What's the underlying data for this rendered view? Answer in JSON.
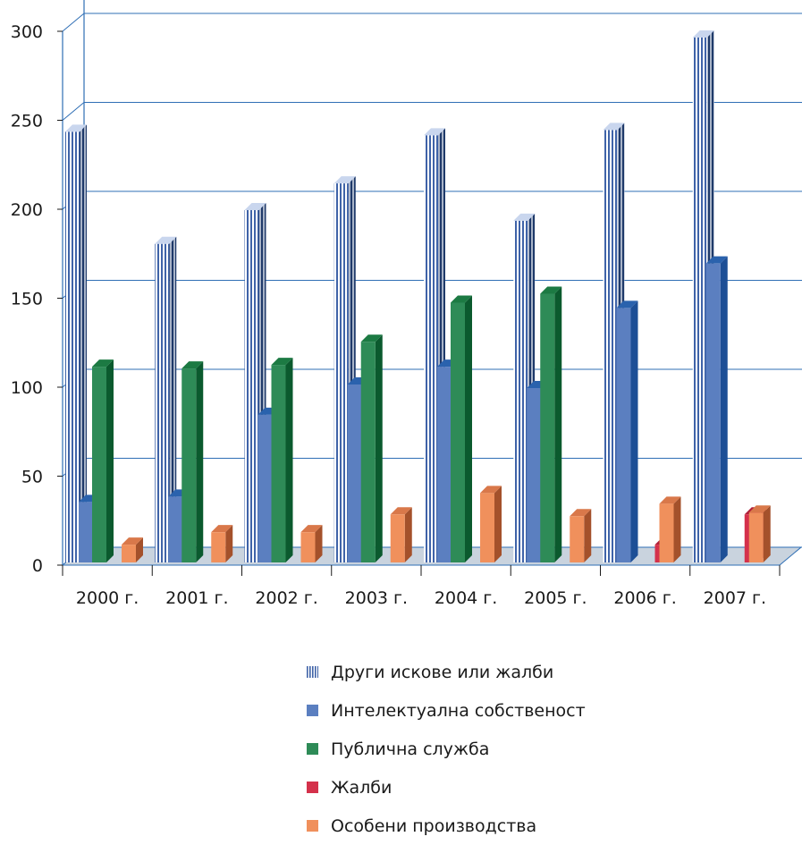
{
  "chart_data": {
    "type": "bar",
    "title": "",
    "xlabel": "",
    "ylabel": "",
    "ylim": [
      0,
      300
    ],
    "yticks": [
      0,
      50,
      100,
      150,
      200,
      250,
      300
    ],
    "grid": true,
    "legend_position": "bottom",
    "categories": [
      "2000 г.",
      "2001 г.",
      "2002 г.",
      "2003 г.",
      "2004 г.",
      "2005 г.",
      "2006 г.",
      "2007 г."
    ],
    "series": [
      {
        "name": "Други искове или жалби",
        "color": "#4a6fb3",
        "pattern": "vertical-stripes",
        "values": [
          242,
          179,
          198,
          213,
          240,
          192,
          243,
          295
        ]
      },
      {
        "name": "Интелектуална собственост",
        "color": "#5b7fc0",
        "values": [
          34,
          37,
          83,
          100,
          110,
          98,
          143,
          168
        ]
      },
      {
        "name": "Публична служба",
        "color": "#2e8b57",
        "values": [
          110,
          109,
          111,
          124,
          146,
          151,
          0,
          0
        ]
      },
      {
        "name": "Жалби",
        "color": "#d4314b",
        "values": [
          0,
          0,
          0,
          0,
          0,
          0,
          10,
          27
        ]
      },
      {
        "name": "Особени производства",
        "color": "#f0905c",
        "values": [
          10,
          17,
          17,
          27,
          39,
          26,
          33,
          28
        ]
      }
    ]
  }
}
